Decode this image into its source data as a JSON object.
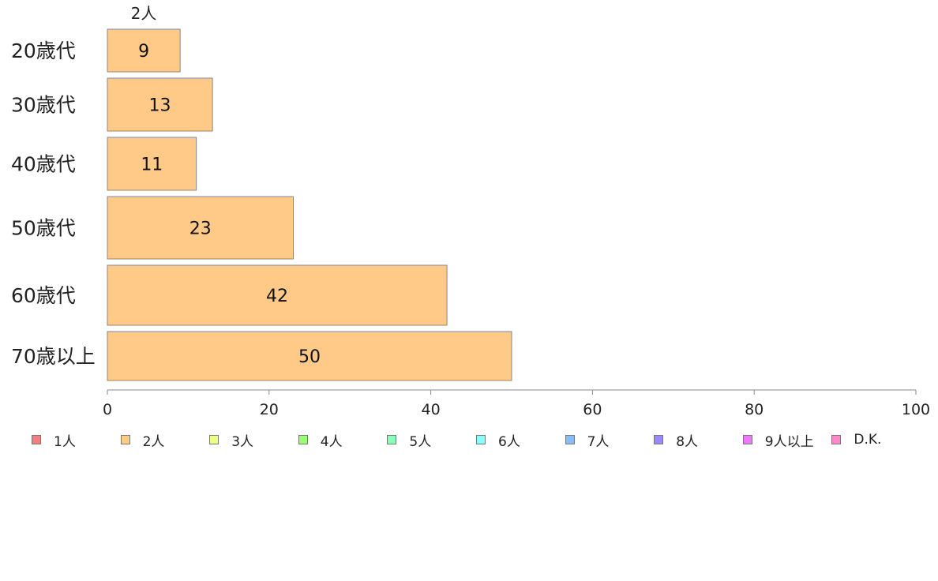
{
  "chart_data": {
    "type": "bar",
    "orientation": "horizontal",
    "stacked": true,
    "top_label": "2人",
    "categories": [
      "20歳代",
      "30歳代",
      "40歳代",
      "50歳代",
      "60歳代",
      "70歳以上"
    ],
    "series": [
      {
        "name": "1人",
        "color": "#f08080",
        "values": [
          0,
          0,
          0,
          0,
          0,
          0
        ]
      },
      {
        "name": "2人",
        "color": "#ffc988",
        "values": [
          9,
          13,
          11,
          23,
          42,
          50
        ]
      },
      {
        "name": "3人",
        "color": "#eeff88",
        "values": [
          0,
          0,
          0,
          0,
          0,
          0
        ]
      },
      {
        "name": "4人",
        "color": "#99ff77",
        "values": [
          0,
          0,
          0,
          0,
          0,
          0
        ]
      },
      {
        "name": "5人",
        "color": "#88ffbb",
        "values": [
          0,
          0,
          0,
          0,
          0,
          0
        ]
      },
      {
        "name": "6人",
        "color": "#88ffff",
        "values": [
          0,
          0,
          0,
          0,
          0,
          0
        ]
      },
      {
        "name": "7人",
        "color": "#88bbff",
        "values": [
          0,
          0,
          0,
          0,
          0,
          0
        ]
      },
      {
        "name": "8人",
        "color": "#9988ff",
        "values": [
          0,
          0,
          0,
          0,
          0,
          0
        ]
      },
      {
        "name": "9人以上",
        "color": "#ee77ff",
        "values": [
          0,
          0,
          0,
          0,
          0,
          0
        ]
      },
      {
        "name": "D.K.",
        "color": "#ff88cc",
        "values": [
          0,
          0,
          0,
          0,
          0,
          0
        ]
      }
    ],
    "xlim": [
      0,
      100
    ],
    "xticks": [
      0,
      20,
      40,
      60,
      80,
      100
    ],
    "grid": false,
    "legend_position": "bottom"
  }
}
